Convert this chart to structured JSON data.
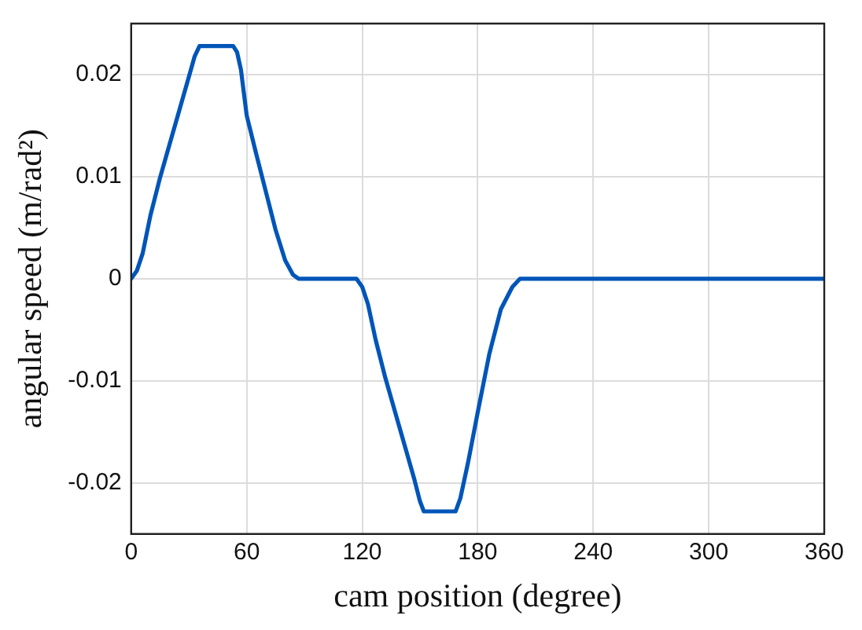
{
  "chart_data": {
    "type": "line",
    "xlabel": "cam position (degree)",
    "ylabel": "angular speed (m/rad²)",
    "x": [
      0,
      3,
      6,
      10,
      15,
      20,
      25,
      30,
      33,
      35.5,
      53,
      55,
      57,
      60,
      65,
      70,
      75,
      80,
      84,
      87,
      117,
      120,
      123,
      127,
      132,
      137,
      142,
      147,
      150,
      152,
      168.5,
      171,
      175,
      180,
      186,
      192,
      198,
      202,
      360
    ],
    "series": [
      {
        "color": "#0055b8",
        "values": [
          0,
          0.0008,
          0.0025,
          0.0062,
          0.0099,
          0.0132,
          0.0165,
          0.0198,
          0.0218,
          0.0228,
          0.0228,
          0.0222,
          0.0205,
          0.016,
          0.0122,
          0.0085,
          0.0048,
          0.0018,
          0.0004,
          0,
          0,
          -0.0008,
          -0.0025,
          -0.006,
          -0.0097,
          -0.013,
          -0.0163,
          -0.0196,
          -0.0218,
          -0.0228,
          -0.0228,
          -0.0215,
          -0.018,
          -0.0131,
          -0.0074,
          -0.003,
          -0.0008,
          0,
          0
        ]
      }
    ],
    "xlim": [
      0,
      360
    ],
    "xticks": [
      0,
      60,
      120,
      180,
      240,
      300,
      360
    ],
    "ylim": [
      -0.025,
      0.025
    ],
    "yticks": [
      -0.02,
      -0.01,
      0,
      0.01,
      0.02
    ],
    "grid": true,
    "legend": false,
    "marker": "none",
    "line_style": "solid"
  }
}
